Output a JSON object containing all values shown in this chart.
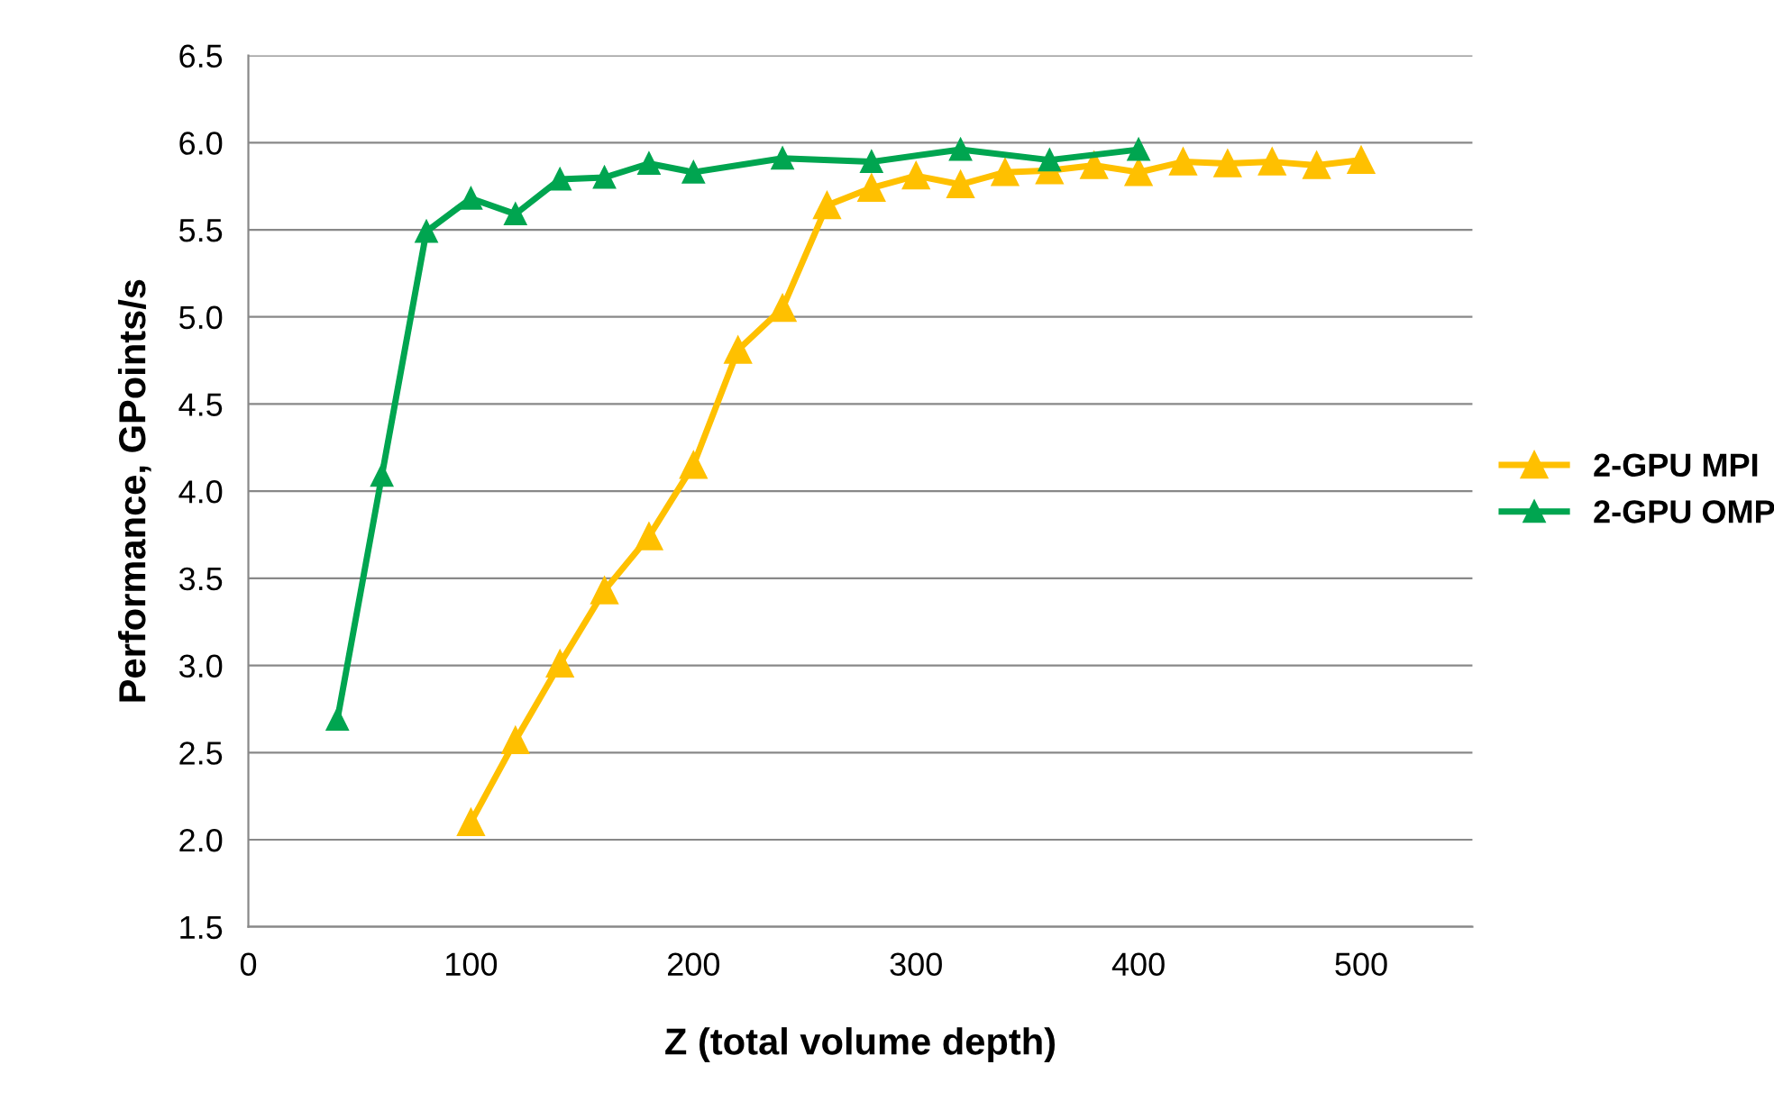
{
  "chart_data": {
    "type": "line",
    "xlabel": "Z (total volume depth)",
    "ylabel": "Performance, GPoints/s",
    "xlim": [
      0,
      550
    ],
    "xticks": [
      0,
      100,
      200,
      300,
      400,
      500
    ],
    "ylim": [
      1.5,
      6.5
    ],
    "yticks": [
      {
        "value": 1.5,
        "label": "1.5"
      },
      {
        "value": 2,
        "label": "2.0"
      },
      {
        "value": 2.5,
        "label": "2.5"
      },
      {
        "value": 3,
        "label": "3.0"
      },
      {
        "value": 3.5,
        "label": "3.5"
      },
      {
        "value": 4,
        "label": "4.0"
      },
      {
        "value": 4.5,
        "label": "4.5"
      },
      {
        "value": 5,
        "label": "5.0"
      },
      {
        "value": 5.5,
        "label": "5.5"
      },
      {
        "value": 6,
        "label": "6.0"
      },
      {
        "value": 6.5,
        "label": "6.5"
      }
    ],
    "grid": "y",
    "legend": "right",
    "marker": "triangle",
    "line_style": "solid",
    "series": [
      {
        "name": "2-GPU MPI",
        "color": "#ffc000",
        "x": [
          100,
          120,
          140,
          160,
          180,
          200,
          220,
          240,
          260,
          280,
          300,
          320,
          340,
          360,
          380,
          400,
          420,
          440,
          460,
          480,
          500
        ],
        "values": [
          2.1,
          2.57,
          3.01,
          3.43,
          3.74,
          4.15,
          4.81,
          5.05,
          5.64,
          5.74,
          5.81,
          5.76,
          5.83,
          5.84,
          5.87,
          5.83,
          5.89,
          5.88,
          5.89,
          5.87,
          5.9
        ]
      },
      {
        "name": "2-GPU OMP",
        "color": "#00a550",
        "x": [
          40,
          60,
          80,
          100,
          120,
          140,
          160,
          180,
          200,
          240,
          280,
          320,
          360,
          400
        ],
        "values": [
          2.69,
          4.09,
          5.49,
          5.68,
          5.59,
          5.79,
          5.8,
          5.88,
          5.83,
          5.91,
          5.89,
          5.96,
          5.9,
          5.96
        ]
      }
    ]
  }
}
